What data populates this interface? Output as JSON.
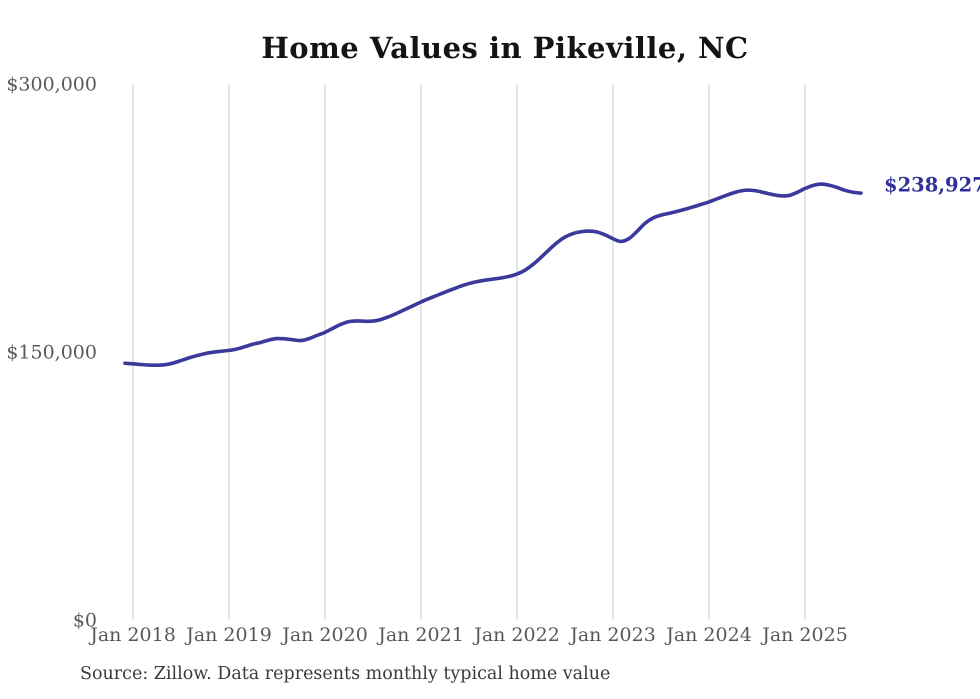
{
  "chart": {
    "title": "Home Values in Pikeville, NC",
    "source": "Source: Zillow. Data represents monthly typical home value",
    "current_value_label": "$238,927"
  },
  "chart_data": {
    "type": "line",
    "title": "Home Values in Pikeville, NC",
    "series_name": "Typical home value (monthly)",
    "frequency": "monthly",
    "x_start": "Dec 2017",
    "x_end": "Aug 2025",
    "x_tick_labels": [
      "Jan 2018",
      "Jan 2019",
      "Jan 2020",
      "Jan 2021",
      "Jan 2022",
      "Jan 2023",
      "Jan 2024",
      "Jan 2025"
    ],
    "y_tick_labels": [
      "$0",
      "$150,000",
      "$300,000"
    ],
    "y_tick_values": [
      0,
      150000,
      300000
    ],
    "ylim": [
      0,
      300000
    ],
    "grid": "vertical-only",
    "legend": "none",
    "end_label": "$238,927",
    "end_value": 238927,
    "line_color": "#3B399B",
    "label_color": "#30309A",
    "gridline_color": "#cbcbcb",
    "tick_label_color": "#595959",
    "values": [
      143700,
      143400,
      143000,
      142700,
      142600,
      142900,
      143800,
      145200,
      146700,
      148000,
      149100,
      149900,
      150400,
      150900,
      151700,
      153000,
      154400,
      155400,
      156700,
      157500,
      157400,
      156800,
      156400,
      157500,
      159300,
      161000,
      163300,
      165500,
      167000,
      167400,
      167200,
      167300,
      168200,
      169800,
      171700,
      173800,
      175900,
      178000,
      179900,
      181700,
      183500,
      185200,
      186900,
      188300,
      189400,
      190200,
      190800,
      191400,
      192300,
      193600,
      195800,
      199000,
      203000,
      207200,
      211200,
      214300,
      216300,
      217300,
      217700,
      217200,
      215600,
      213400,
      211900,
      213500,
      217500,
      222000,
      225000,
      226600,
      227600,
      228700,
      229900,
      231200,
      232600,
      234000,
      235700,
      237400,
      239000,
      240200,
      240600,
      240100,
      239100,
      238100,
      237400,
      237600,
      239300,
      241500,
      243200,
      244000,
      243400,
      242100,
      240500,
      239400,
      238927
    ]
  }
}
